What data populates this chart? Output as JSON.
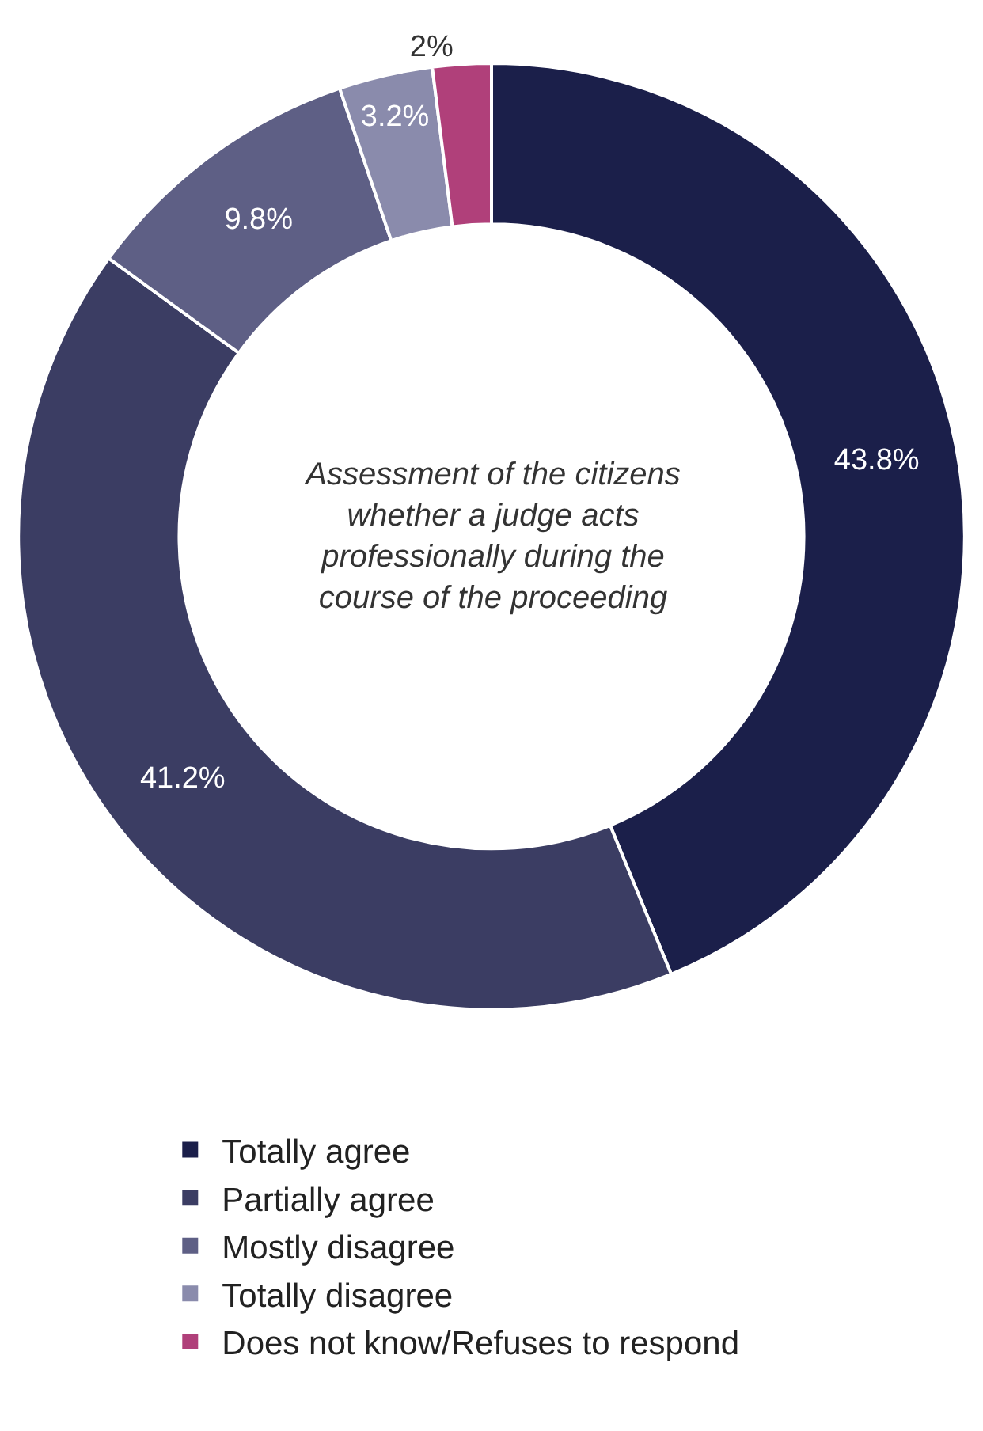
{
  "chart_data": {
    "type": "donut",
    "title": "Assessment of the citizens whether a judge acts professionally during the course of the proceeding",
    "categories": [
      "Totally agree",
      "Partially agree",
      "Mostly disagree",
      "Totally disagree",
      "Does not know/Refuses to respond"
    ],
    "values": [
      43.8,
      41.2,
      9.8,
      3.2,
      2
    ],
    "colors": [
      "#1b1f4a",
      "#3b3d63",
      "#5e5f85",
      "#8a8bac",
      "#b0407a"
    ],
    "value_labels": [
      "43.8%",
      "41.2%",
      "9.8%",
      "3.2%",
      "2%"
    ],
    "legend": "bottom"
  }
}
